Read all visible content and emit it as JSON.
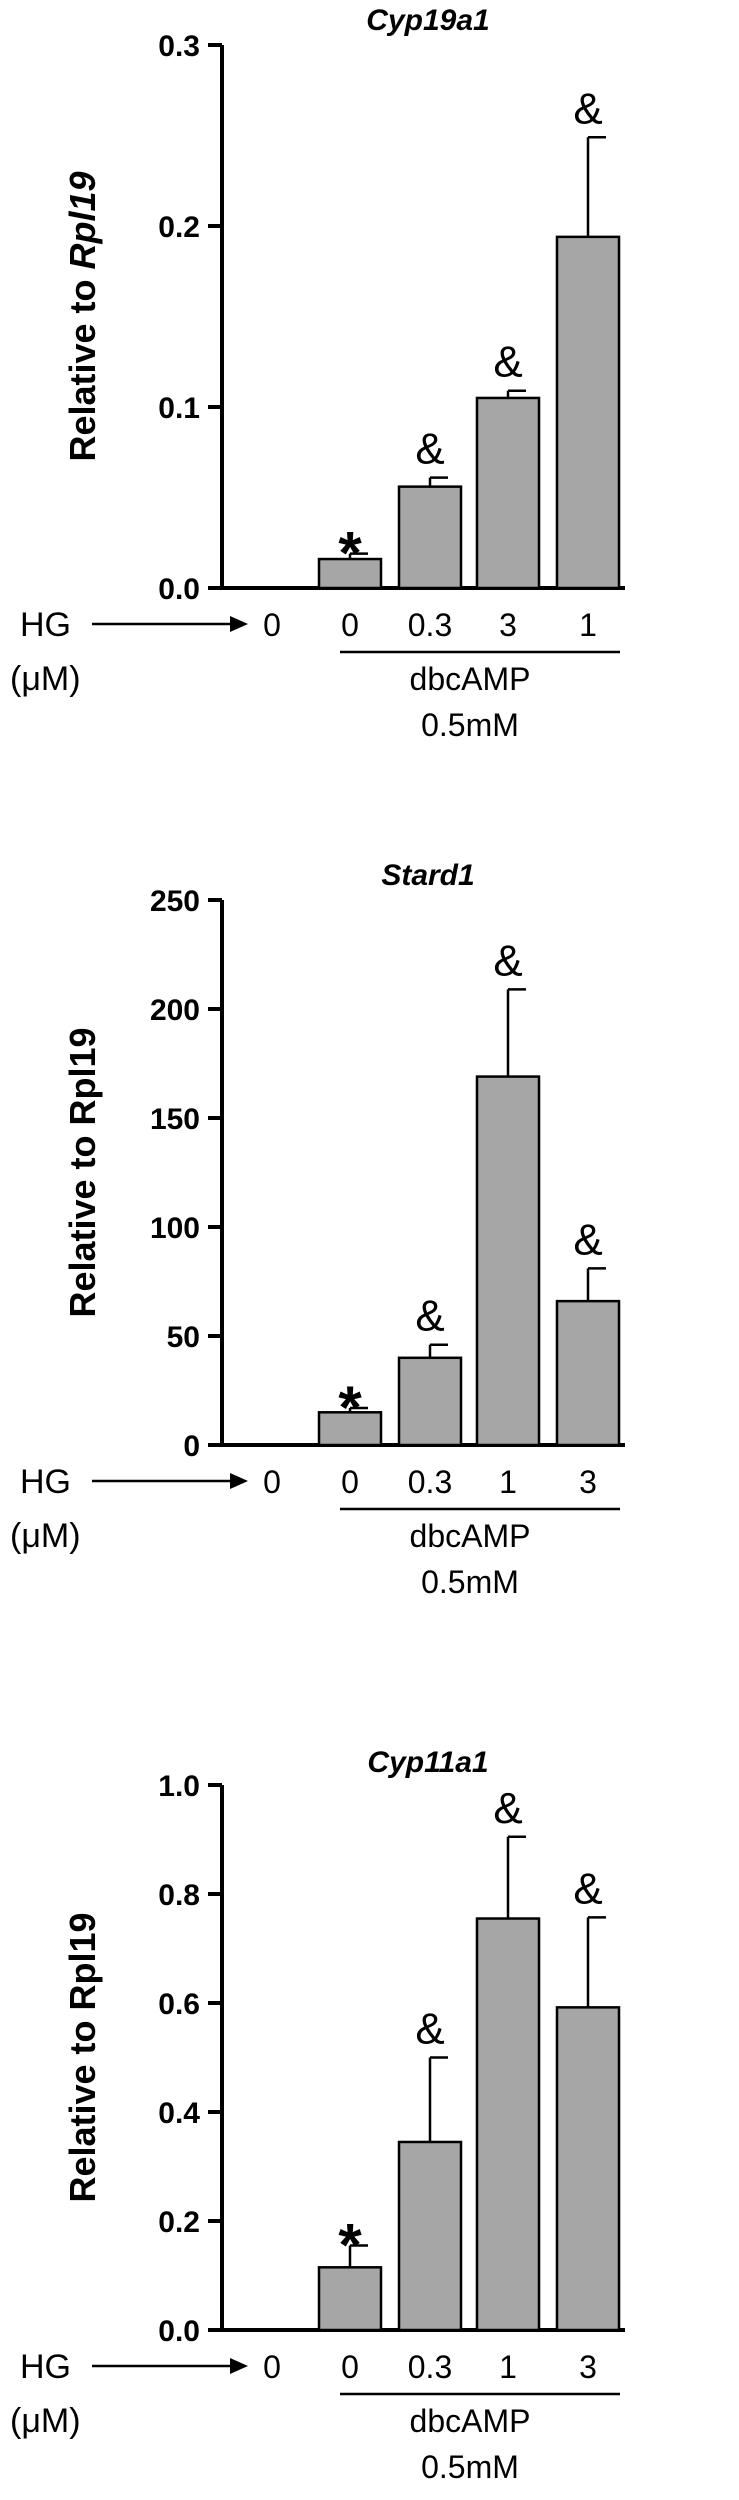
{
  "colors": {
    "bar": "#a6a6a6",
    "stroke": "#000000"
  },
  "hg_label": "HG",
  "unit_label": "(μM)",
  "group_label": "dbcAMP",
  "group_sublabel": "0.5mM",
  "chart_data": [
    {
      "type": "bar",
      "title": "Cyp19a1",
      "ylabel_prefix": "Relative to ",
      "ylabel_gene": "Rpl19",
      "ylabel_gene_italic": true,
      "categories": [
        "0",
        "0",
        "0.3",
        "3",
        "1"
      ],
      "values": [
        0.0,
        0.016,
        0.056,
        0.105,
        0.194
      ],
      "errors": [
        0.0,
        0.003,
        0.005,
        0.004,
        0.055
      ],
      "annotations": [
        "",
        "*",
        "&",
        "&",
        "&"
      ],
      "ylim": [
        0,
        0.3
      ],
      "yticks": [
        0.0,
        0.1,
        0.2,
        0.3
      ],
      "ytick_labels": [
        "0.0",
        "0.1",
        "0.2",
        "0.3"
      ]
    },
    {
      "type": "bar",
      "title": "Stard1",
      "ylabel_prefix": "Relative to ",
      "ylabel_gene": "Rpl19",
      "ylabel_gene_italic": false,
      "categories": [
        "0",
        "0",
        "0.3",
        "1",
        "3"
      ],
      "values": [
        0,
        15,
        40,
        169,
        66
      ],
      "errors": [
        0,
        2,
        6,
        40,
        15
      ],
      "annotations": [
        "",
        "*",
        "&",
        "&",
        "&"
      ],
      "ylim": [
        0,
        250
      ],
      "yticks": [
        0,
        50,
        100,
        150,
        200,
        250
      ],
      "ytick_labels": [
        "0",
        "50",
        "100",
        "150",
        "200",
        "250"
      ]
    },
    {
      "type": "bar",
      "title": "Cyp11a1",
      "ylabel_prefix": "Relative to ",
      "ylabel_gene": "Rpl19",
      "ylabel_gene_italic": false,
      "categories": [
        "0",
        "0",
        "0.3",
        "1",
        "3"
      ],
      "values": [
        0.0,
        0.115,
        0.345,
        0.755,
        0.592
      ],
      "errors": [
        0.0,
        0.04,
        0.155,
        0.15,
        0.165
      ],
      "annotations": [
        "",
        "*",
        "&",
        "&",
        "&"
      ],
      "ylim": [
        0,
        1.0
      ],
      "yticks": [
        0.0,
        0.2,
        0.4,
        0.6,
        0.8,
        1.0
      ],
      "ytick_labels": [
        "0.0",
        "0.2",
        "0.4",
        "0.6",
        "0.8",
        "1.0"
      ]
    }
  ]
}
